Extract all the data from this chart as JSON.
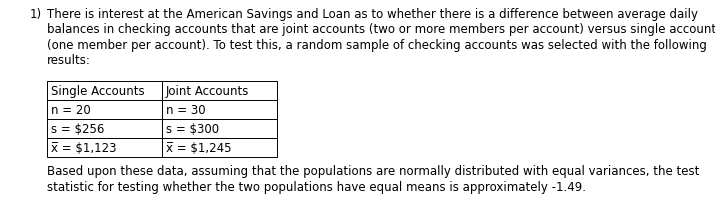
{
  "question_number": "1)",
  "para_lines": [
    "There is interest at the American Savings and Loan as to whether there is a difference between average daily",
    "balances in checking accounts that are joint accounts (two or more members per account) versus single accounts",
    "(one member per account). To test this, a random sample of checking accounts was selected with the following",
    "results:"
  ],
  "table_headers": [
    "Single Accounts",
    "Joint Accounts"
  ],
  "table_rows": [
    [
      "n = 20",
      "n = 30"
    ],
    [
      "s = $256",
      "s = $300"
    ],
    [
      "x̅ = $1,123",
      "x̅ = $1,245"
    ]
  ],
  "footer_lines": [
    "Based upon these data, assuming that the populations are normally distributed with equal variances, the test",
    "statistic for testing whether the two populations have equal means is approximately -1.49."
  ],
  "bg_color": "#ffffff",
  "text_color": "#000000",
  "font_size": 8.5,
  "table_font_size": 8.5
}
